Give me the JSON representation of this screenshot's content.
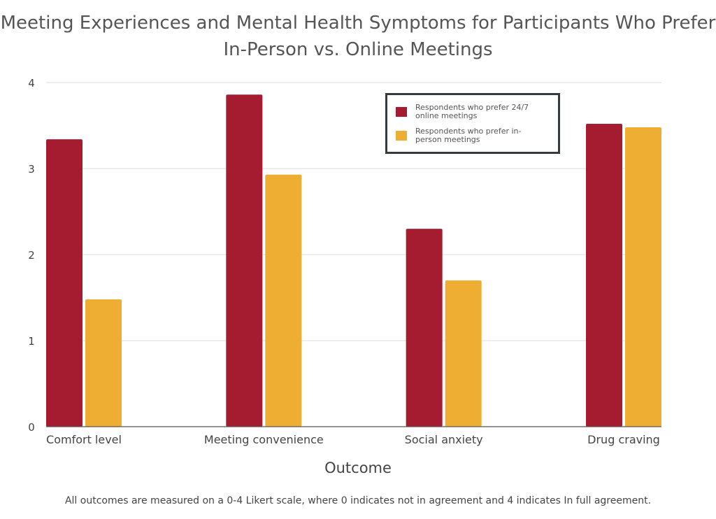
{
  "chart_data": {
    "type": "bar",
    "title_lines": [
      "Meeting Experiences and Mental Health Symptoms for Participants Who Prefer",
      "In-Person vs. Online Meetings"
    ],
    "categories": [
      "Comfort level",
      "Meeting convenience",
      "Social anxiety",
      "Drug craving"
    ],
    "series": [
      {
        "name": "Respondents who prefer 24/7 online meetings",
        "color": "#a51c30",
        "values": [
          3.34,
          3.86,
          2.3,
          3.52
        ]
      },
      {
        "name": "Respondents who prefer in-person meetings",
        "color": "#edae33",
        "values": [
          1.48,
          2.93,
          1.7,
          3.48
        ]
      }
    ],
    "xlabel": "Outcome",
    "ylabel": "",
    "ylim": [
      0,
      4
    ],
    "yticks": [
      0,
      1,
      2,
      3,
      4
    ],
    "grid": true,
    "legend_position": "top-right",
    "footnote": "All outcomes are measured on a 0-4 Likert scale, where 0 indicates not in agreement and 4 indicates In full agreement."
  }
}
